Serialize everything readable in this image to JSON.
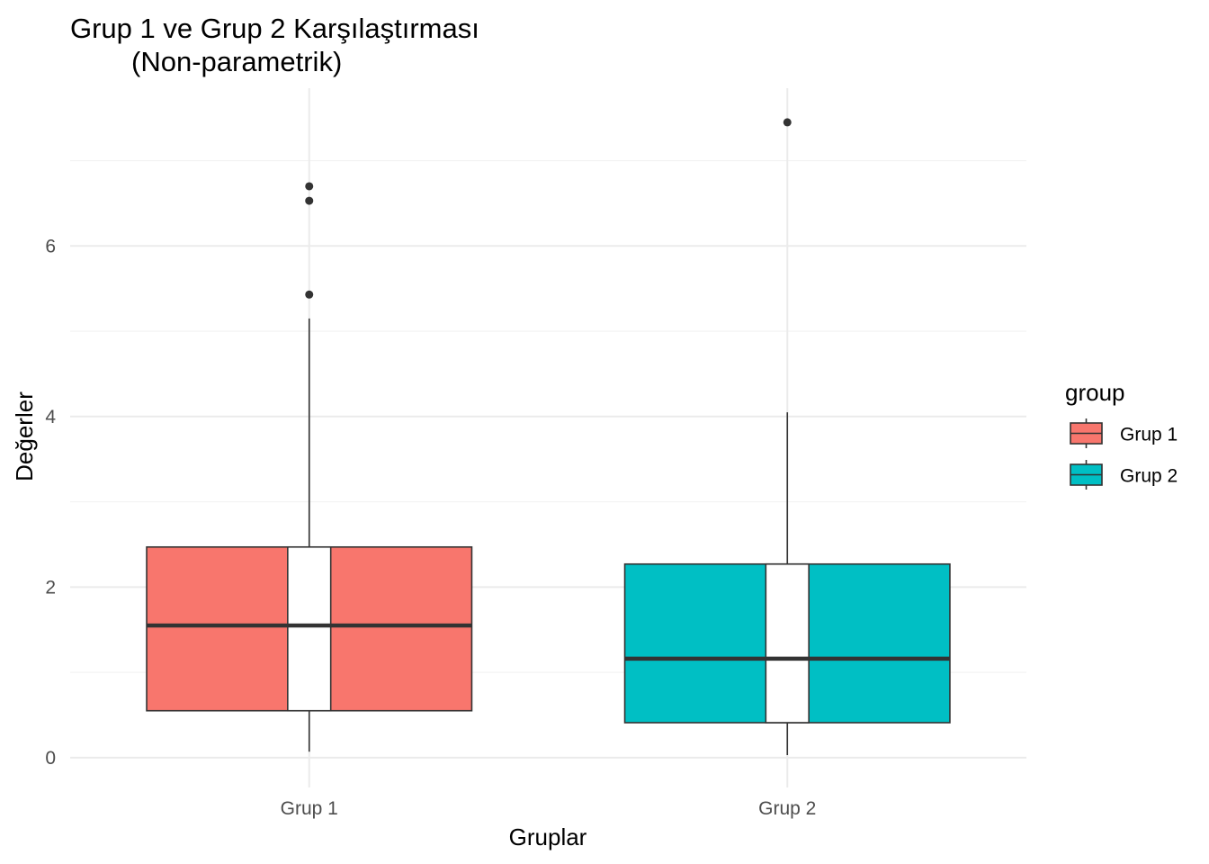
{
  "chart_data": {
    "type": "boxplot",
    "title": "Grup 1 ve Grup 2 Karşılaştırması",
    "subtitle": "(Non-parametrik)",
    "xlabel": "Gruplar",
    "ylabel": "Değerler",
    "categories": [
      "Grup 1",
      "Grup 2"
    ],
    "ylim": [
      -0.35,
      7.85
    ],
    "yticks": [
      0,
      2,
      4,
      6
    ],
    "ytick_labels": [
      "0",
      "2",
      "4",
      "6"
    ],
    "grid": true,
    "notched_boxes": true,
    "legend": {
      "title": "group",
      "position": "right",
      "entries": [
        "Grup 1",
        "Grup 2"
      ]
    },
    "series": [
      {
        "category": "Grup 1",
        "color": "#F8766D",
        "whisker_low": 0.07,
        "q1": 0.55,
        "median": 1.55,
        "q3": 2.47,
        "whisker_high": 5.15,
        "notch_low": 0.55,
        "notch_high": 2.47,
        "outliers": [
          5.43,
          6.53,
          6.7
        ]
      },
      {
        "category": "Grup 2",
        "color": "#00BFC4",
        "whisker_low": 0.03,
        "q1": 0.41,
        "median": 1.16,
        "q3": 2.27,
        "whisker_high": 4.05,
        "notch_low": 0.41,
        "notch_high": 2.27,
        "outliers": [
          7.45
        ]
      }
    ]
  }
}
